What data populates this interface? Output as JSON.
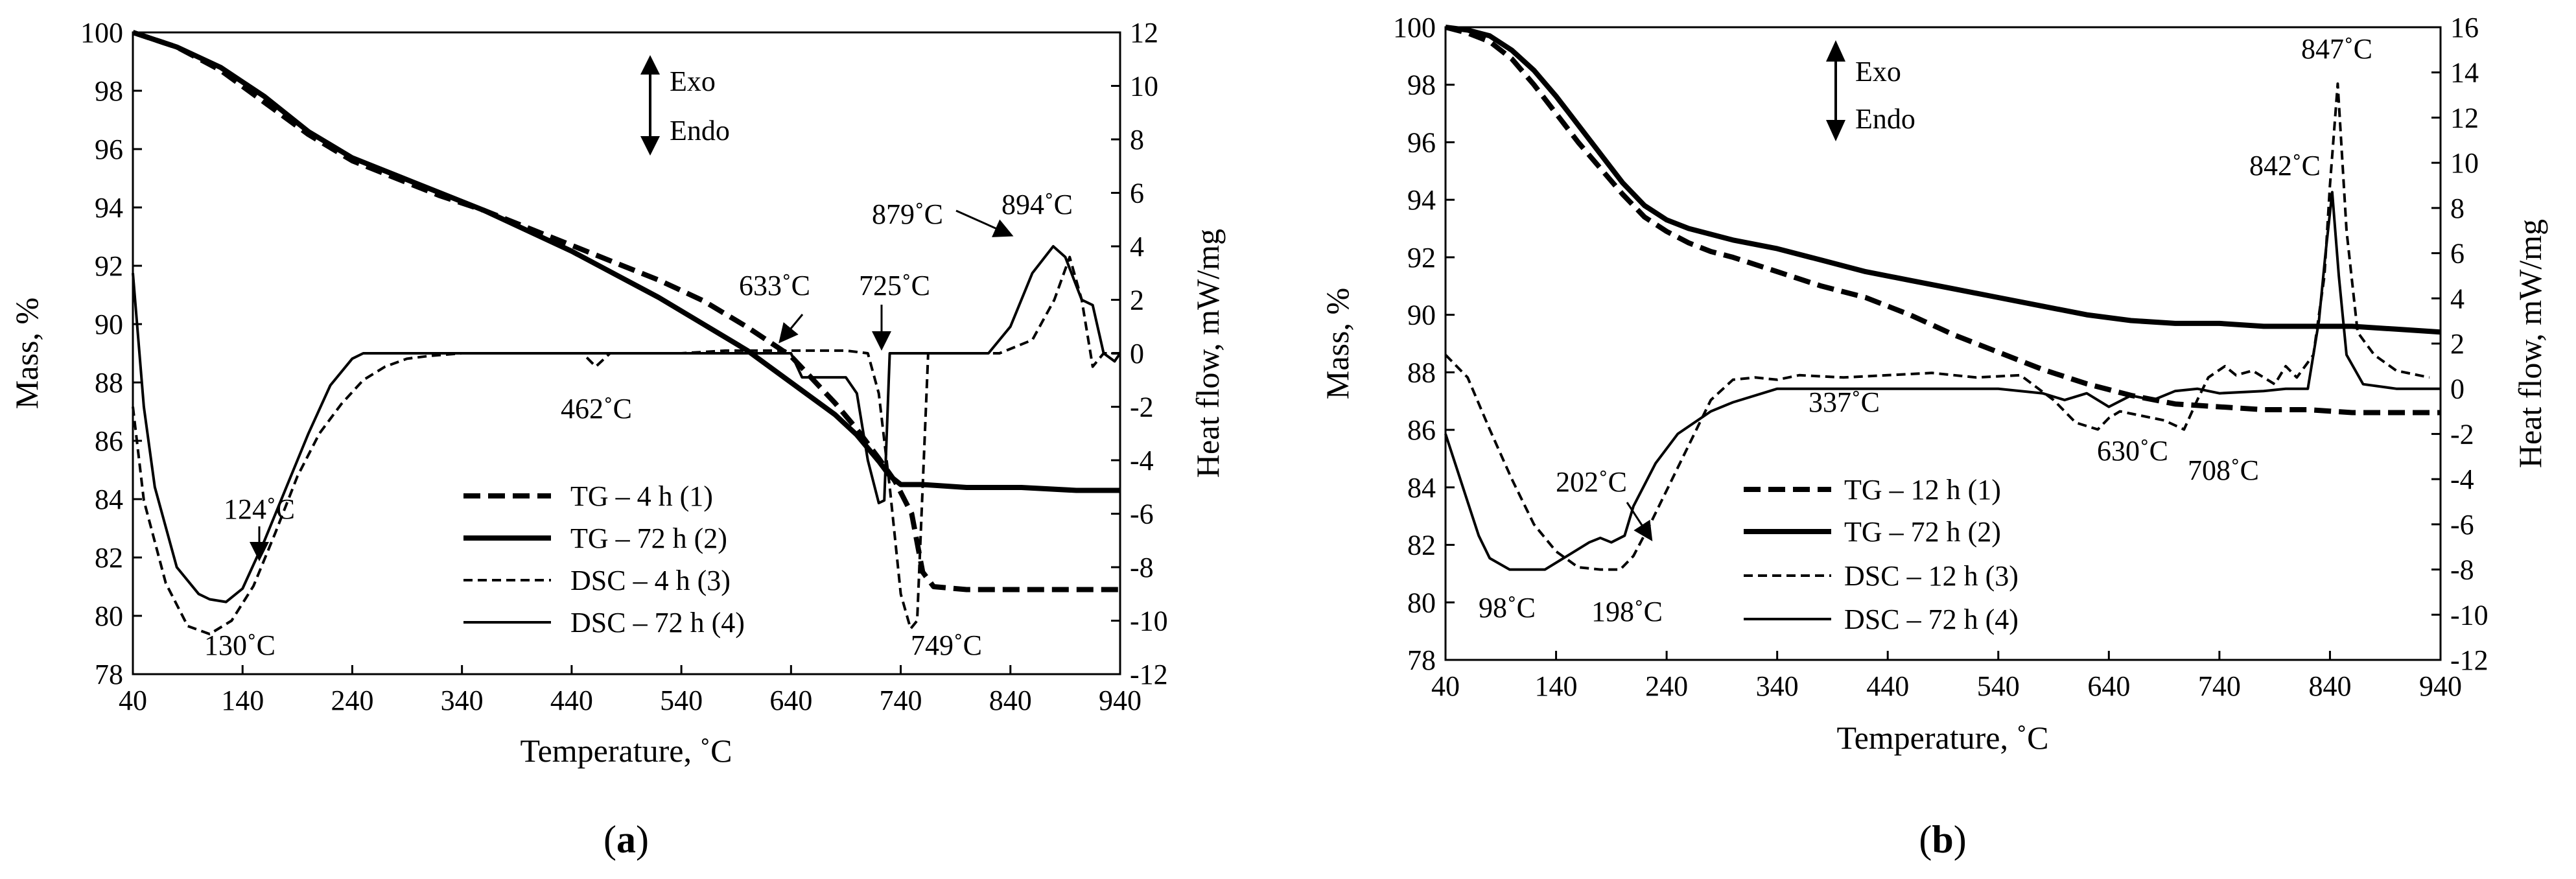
{
  "chart_data": [
    {
      "type": "line",
      "panel_label": "a",
      "xlabel": "Temperature, ˚C",
      "ylabel": "Mass, %",
      "y2label": "Heat flow, mW/mg",
      "xlim": [
        40,
        940
      ],
      "ylim": [
        78,
        100
      ],
      "y2lim": [
        -12,
        12
      ],
      "xticks": [
        40,
        140,
        240,
        340,
        440,
        540,
        640,
        740,
        840,
        940
      ],
      "yticks": [
        78,
        80,
        82,
        84,
        86,
        88,
        90,
        92,
        94,
        96,
        98,
        100
      ],
      "y2ticks": [
        -12,
        -10,
        -8,
        -6,
        -4,
        -2,
        0,
        2,
        4,
        6,
        8,
        10,
        12
      ],
      "grid": false,
      "exo_up": "Exo",
      "endo_down": "Endo",
      "legend_position": "bottom-center",
      "series": [
        {
          "name": "TG – 4 h (1)",
          "axis": "left",
          "style": "dashed-thick",
          "x": [
            40,
            80,
            120,
            160,
            200,
            240,
            280,
            320,
            360,
            400,
            440,
            480,
            520,
            560,
            600,
            640,
            680,
            700,
            720,
            735,
            750,
            760,
            770,
            800,
            850,
            900,
            940
          ],
          "y": [
            100,
            99.5,
            98.7,
            97.6,
            96.5,
            95.6,
            95.0,
            94.4,
            93.9,
            93.3,
            92.7,
            92.1,
            91.5,
            90.8,
            89.9,
            88.9,
            87.3,
            86.4,
            85.4,
            84.6,
            83.5,
            81.5,
            81.0,
            80.9,
            80.9,
            80.9,
            80.9
          ]
        },
        {
          "name": "TG – 72 h (2)",
          "axis": "left",
          "style": "solid-thick",
          "x": [
            40,
            80,
            120,
            160,
            200,
            240,
            280,
            320,
            360,
            400,
            440,
            480,
            520,
            560,
            600,
            640,
            680,
            700,
            720,
            730,
            740,
            760,
            800,
            850,
            900,
            940
          ],
          "y": [
            100,
            99.5,
            98.8,
            97.8,
            96.6,
            95.7,
            95.1,
            94.5,
            93.9,
            93.2,
            92.5,
            91.7,
            90.9,
            90.0,
            89.1,
            88.0,
            86.9,
            86.2,
            85.3,
            84.8,
            84.5,
            84.5,
            84.4,
            84.4,
            84.3,
            84.3
          ]
        },
        {
          "name": "DSC – 4 h (3)",
          "axis": "right",
          "style": "dashed-thin",
          "x": [
            40,
            50,
            70,
            90,
            110,
            130,
            150,
            170,
            190,
            210,
            230,
            250,
            270,
            290,
            310,
            340,
            380,
            420,
            450,
            462,
            475,
            500,
            540,
            580,
            620,
            660,
            690,
            710,
            720,
            730,
            740,
            749,
            755,
            760,
            765,
            780,
            800,
            830,
            860,
            880,
            894,
            905,
            915,
            925,
            940
          ],
          "y": [
            -2.0,
            -5.5,
            -8.6,
            -10.2,
            -10.5,
            -10.0,
            -8.7,
            -6.7,
            -4.6,
            -3.0,
            -1.9,
            -1.0,
            -0.5,
            -0.2,
            -0.1,
            0.0,
            0.0,
            0.0,
            0.0,
            -0.5,
            0.0,
            0.0,
            0.0,
            0.1,
            0.1,
            0.1,
            0.1,
            0.0,
            -1.5,
            -5.0,
            -9.0,
            -10.3,
            -10.0,
            -5.0,
            0.0,
            0.0,
            0.0,
            0.0,
            0.5,
            2.0,
            3.6,
            2.0,
            -0.5,
            0.0,
            0.0
          ]
        },
        {
          "name": "DSC – 72 h (4)",
          "axis": "right",
          "style": "solid-thin",
          "x": [
            40,
            50,
            60,
            80,
            100,
            110,
            125,
            140,
            160,
            180,
            200,
            220,
            240,
            250,
            300,
            350,
            400,
            450,
            500,
            550,
            600,
            640,
            650,
            690,
            700,
            710,
            720,
            725,
            730,
            740,
            760,
            800,
            820,
            840,
            860,
            879,
            890,
            905,
            915,
            925,
            935,
            940
          ],
          "y": [
            3.0,
            -2.0,
            -5.0,
            -8.0,
            -9.0,
            -9.2,
            -9.3,
            -8.8,
            -7.0,
            -5.0,
            -3.0,
            -1.2,
            -0.2,
            0.0,
            0.0,
            0.0,
            0.0,
            0.0,
            0.0,
            0.0,
            0.0,
            0.0,
            -0.9,
            -0.9,
            -1.5,
            -4.0,
            -5.6,
            -5.5,
            0.0,
            0.0,
            0.0,
            0.0,
            0.0,
            1.0,
            3.0,
            4.0,
            3.6,
            2.0,
            1.8,
            0.0,
            -0.3,
            0.0
          ]
        }
      ],
      "annotations": [
        {
          "text": "124˚C",
          "x": 124,
          "y2": -9.3,
          "arrow": true
        },
        {
          "text": "130˚C",
          "x": 130,
          "y2": -10.5,
          "arrow": false
        },
        {
          "text": "462˚C",
          "x": 462,
          "y2": -0.5,
          "arrow": false
        },
        {
          "text": "633˚C",
          "x": 633,
          "y2": -0.9,
          "arrow": true
        },
        {
          "text": "725˚C",
          "x": 725,
          "y2": -1.5,
          "arrow": true
        },
        {
          "text": "749˚C",
          "x": 749,
          "y2": -10.3,
          "arrow": false
        },
        {
          "text": "879˚C",
          "x": 879,
          "y2": 4.0,
          "arrow": true
        },
        {
          "text": "894˚C",
          "x": 894,
          "y2": 3.6,
          "arrow": false
        }
      ]
    },
    {
      "type": "line",
      "panel_label": "b",
      "xlabel": "Temperature, ˚C",
      "ylabel": "Mass, %",
      "y2label": "Heat flow, mW/mg",
      "xlim": [
        40,
        940
      ],
      "ylim": [
        78,
        100
      ],
      "y2lim": [
        -12,
        16
      ],
      "xticks": [
        40,
        140,
        240,
        340,
        440,
        540,
        640,
        740,
        840,
        940
      ],
      "yticks": [
        78,
        80,
        82,
        84,
        86,
        88,
        90,
        92,
        94,
        96,
        98,
        100
      ],
      "y2ticks": [
        -12,
        -10,
        -8,
        -6,
        -4,
        -2,
        0,
        2,
        4,
        6,
        8,
        10,
        12,
        14,
        16
      ],
      "grid": false,
      "exo_up": "Exo",
      "endo_down": "Endo",
      "legend_position": "bottom-center",
      "series": [
        {
          "name": "TG – 12 h (1)",
          "axis": "left",
          "style": "dashed-thick",
          "x": [
            40,
            60,
            80,
            100,
            120,
            140,
            160,
            180,
            200,
            220,
            240,
            260,
            280,
            300,
            340,
            380,
            420,
            460,
            500,
            540,
            580,
            620,
            660,
            700,
            740,
            780,
            820,
            860,
            900,
            940
          ],
          "y": [
            100,
            99.8,
            99.5,
            98.9,
            98.0,
            97.0,
            96.0,
            95.1,
            94.2,
            93.4,
            92.9,
            92.5,
            92.2,
            92.0,
            91.5,
            91.0,
            90.6,
            90.0,
            89.3,
            88.7,
            88.1,
            87.6,
            87.2,
            86.9,
            86.8,
            86.7,
            86.7,
            86.6,
            86.6,
            86.6
          ]
        },
        {
          "name": "TG – 72 h (2)",
          "axis": "left",
          "style": "solid-thick",
          "x": [
            40,
            60,
            80,
            100,
            120,
            140,
            160,
            180,
            200,
            220,
            240,
            260,
            280,
            300,
            340,
            380,
            420,
            460,
            500,
            540,
            580,
            620,
            660,
            700,
            740,
            780,
            820,
            860,
            900,
            940
          ],
          "y": [
            100,
            99.9,
            99.7,
            99.2,
            98.5,
            97.6,
            96.6,
            95.6,
            94.6,
            93.8,
            93.3,
            93.0,
            92.8,
            92.6,
            92.3,
            91.9,
            91.5,
            91.2,
            90.9,
            90.6,
            90.3,
            90.0,
            89.8,
            89.7,
            89.7,
            89.6,
            89.6,
            89.6,
            89.5,
            89.4
          ]
        },
        {
          "name": "DSC – 12 h (3)",
          "axis": "right",
          "style": "dashed-thin",
          "x": [
            40,
            60,
            80,
            100,
            120,
            140,
            160,
            180,
            198,
            210,
            225,
            240,
            260,
            280,
            300,
            320,
            340,
            360,
            400,
            440,
            480,
            520,
            560,
            590,
            610,
            630,
            640,
            650,
            670,
            690,
            708,
            720,
            730,
            745,
            755,
            770,
            790,
            800,
            810,
            825,
            835,
            840,
            847,
            855,
            865,
            880,
            900,
            920,
            930
          ],
          "y": [
            1.5,
            0.5,
            -1.8,
            -4.0,
            -6.0,
            -7.2,
            -7.9,
            -8.0,
            -8.0,
            -7.4,
            -6.0,
            -4.5,
            -2.5,
            -0.5,
            0.4,
            0.5,
            0.4,
            0.6,
            0.5,
            0.6,
            0.7,
            0.5,
            0.6,
            -0.5,
            -1.5,
            -1.8,
            -1.3,
            -1.0,
            -1.2,
            -1.4,
            -1.8,
            -0.5,
            0.5,
            1.0,
            0.6,
            0.8,
            0.2,
            1.0,
            0.5,
            1.5,
            5.0,
            9.0,
            13.5,
            7.0,
            2.5,
            1.5,
            0.8,
            0.6,
            0.5
          ]
        },
        {
          "name": "DSC – 72 h (4)",
          "axis": "right",
          "style": "solid-thin",
          "x": [
            40,
            50,
            60,
            70,
            80,
            98,
            110,
            130,
            150,
            170,
            180,
            190,
            202,
            210,
            230,
            250,
            280,
            300,
            340,
            380,
            420,
            460,
            500,
            540,
            580,
            600,
            620,
            640,
            660,
            680,
            700,
            720,
            740,
            780,
            800,
            820,
            830,
            836,
            842,
            848,
            855,
            870,
            900,
            940
          ],
          "y": [
            -2.0,
            -3.5,
            -5.0,
            -6.5,
            -7.5,
            -8.0,
            -8.0,
            -8.0,
            -7.4,
            -6.8,
            -6.6,
            -6.8,
            -6.5,
            -5.2,
            -3.3,
            -2.0,
            -1.0,
            -0.6,
            0.0,
            0.0,
            0.0,
            0.0,
            0.0,
            0.0,
            -0.2,
            -0.5,
            -0.2,
            -0.8,
            -0.3,
            -0.5,
            -0.1,
            0.0,
            -0.2,
            -0.1,
            0.0,
            0.0,
            3.0,
            6.0,
            8.7,
            5.0,
            1.5,
            0.2,
            0.0,
            0.0
          ]
        }
      ],
      "annotations": [
        {
          "text": "98˚C",
          "x": 98,
          "y2": -8.0,
          "arrow": false
        },
        {
          "text": "202˚C",
          "x": 202,
          "y2": -6.5,
          "arrow": true
        },
        {
          "text": "198˚C",
          "x": 198,
          "y2": -8.0,
          "arrow": false
        },
        {
          "text": "337˚C",
          "x": 337,
          "y2": 0.5,
          "arrow": false
        },
        {
          "text": "630˚C",
          "x": 630,
          "y2": -1.8,
          "arrow": false
        },
        {
          "text": "708˚C",
          "x": 708,
          "y2": -1.8,
          "arrow": false
        },
        {
          "text": "842˚C",
          "x": 842,
          "y2": 8.7,
          "arrow": false
        },
        {
          "text": "847˚C",
          "x": 847,
          "y2": 13.5,
          "arrow": false
        }
      ]
    }
  ]
}
